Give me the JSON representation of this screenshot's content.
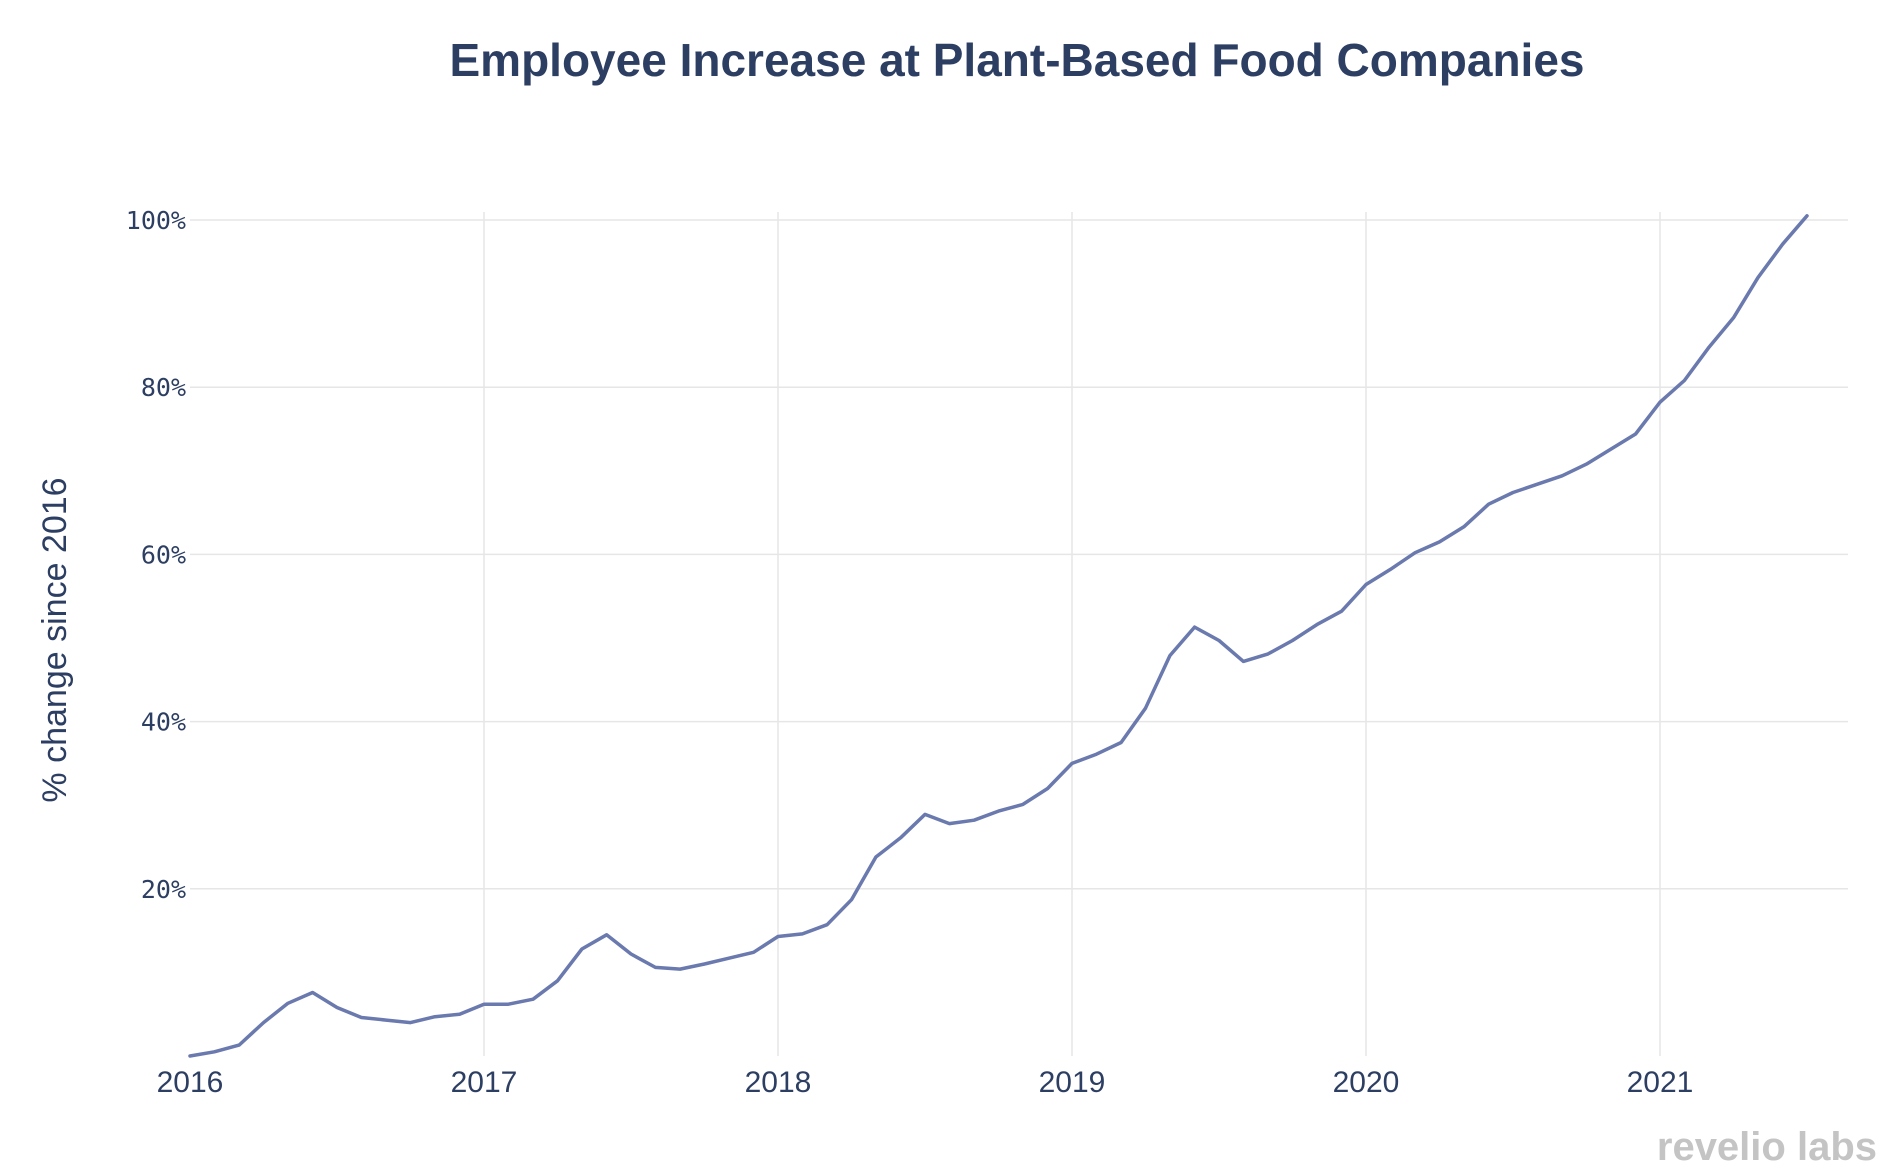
{
  "colors": {
    "title": "#2d3e63",
    "series": "#6a79ae",
    "grid": "#e6e6e6",
    "brand": "#c4c4c4"
  },
  "brand": {
    "text": "revelio labs"
  },
  "chart_data": {
    "type": "line",
    "title": "Employee Increase at Plant-Based Food Companies",
    "xlabel": "",
    "ylabel": "% change since 2016",
    "grid": true,
    "legend": "none",
    "xlim": [
      2016,
      2021.6
    ],
    "ylim": [
      0,
      100
    ],
    "yticks": [
      20,
      40,
      60,
      80,
      100
    ],
    "ytick_labels": [
      "20%",
      "40%",
      "60%",
      "80%",
      "100%"
    ],
    "xticks": [
      2016,
      2017,
      2018,
      2019,
      2020,
      2021
    ],
    "xtick_labels": [
      "2016",
      "2017",
      "2018",
      "2019",
      "2020",
      "2021"
    ],
    "series": [
      {
        "name": "% change since 2016",
        "x": [
          2016.0,
          2016.083,
          2016.167,
          2016.25,
          2016.333,
          2016.417,
          2016.5,
          2016.583,
          2016.667,
          2016.75,
          2016.833,
          2016.917,
          2017.0,
          2017.083,
          2017.167,
          2017.25,
          2017.333,
          2017.417,
          2017.5,
          2017.583,
          2017.667,
          2017.75,
          2017.833,
          2017.917,
          2018.0,
          2018.083,
          2018.167,
          2018.25,
          2018.333,
          2018.417,
          2018.5,
          2018.583,
          2018.667,
          2018.75,
          2018.833,
          2018.917,
          2019.0,
          2019.083,
          2019.167,
          2019.25,
          2019.333,
          2019.417,
          2019.5,
          2019.583,
          2019.667,
          2019.75,
          2019.833,
          2019.917,
          2020.0,
          2020.083,
          2020.167,
          2020.25,
          2020.333,
          2020.417,
          2020.5,
          2020.583,
          2020.667,
          2020.75,
          2020.833,
          2020.917,
          2021.0,
          2021.083,
          2021.167,
          2021.25,
          2021.333,
          2021.417,
          2021.5
        ],
        "values": [
          0.0,
          0.5,
          1.3,
          4.0,
          6.3,
          7.6,
          5.8,
          4.6,
          4.3,
          4.0,
          4.7,
          5.0,
          6.2,
          6.2,
          6.8,
          9.0,
          12.8,
          14.5,
          12.2,
          10.6,
          10.4,
          11.0,
          11.7,
          12.4,
          14.3,
          14.6,
          15.7,
          18.7,
          23.8,
          26.1,
          28.9,
          27.8,
          28.2,
          29.3,
          30.1,
          32.0,
          35.0,
          36.1,
          37.5,
          41.6,
          47.9,
          51.3,
          49.7,
          47.2,
          48.1,
          49.7,
          51.6,
          53.2,
          56.4,
          58.2,
          60.2,
          61.5,
          63.3,
          66.0,
          67.4,
          68.4,
          69.4,
          70.8,
          72.6,
          74.4,
          78.2,
          80.8,
          84.8,
          88.3,
          93.1,
          97.1,
          100.5
        ]
      }
    ]
  }
}
